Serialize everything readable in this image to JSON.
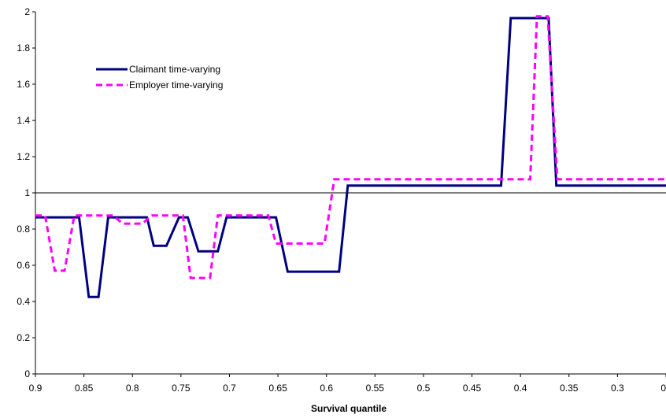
{
  "chart_data": {
    "type": "line",
    "title": "",
    "xlabel": "Survival quantile",
    "ylabel": "",
    "xlim": [
      0.9,
      0.25
    ],
    "ylim": [
      0,
      2
    ],
    "x_ticks": [
      "0.9",
      "0.85",
      "0.8",
      "0.75",
      "0.7",
      "0.65",
      "0.6",
      "0.55",
      "0.5",
      "0.45",
      "0.4",
      "0.35",
      "0.3",
      "0"
    ],
    "y_ticks": [
      "0",
      "0.2",
      "0.4",
      "0.6",
      "0.8",
      "1",
      "1.2",
      "1.4",
      "1.6",
      "1.8",
      "2"
    ],
    "reference_line": 1,
    "grid": false,
    "legend_position": "upper-left",
    "series": [
      {
        "name": "Claimant time-varying",
        "color": "#000080",
        "style": "solid",
        "x": [
          0.9,
          0.855,
          0.845,
          0.835,
          0.825,
          0.785,
          0.778,
          0.765,
          0.752,
          0.743,
          0.732,
          0.712,
          0.703,
          0.692,
          0.66,
          0.652,
          0.64,
          0.587,
          0.578,
          0.42,
          0.41,
          0.371,
          0.363,
          0.25
        ],
        "values": [
          0.865,
          0.865,
          0.425,
          0.425,
          0.865,
          0.865,
          0.708,
          0.708,
          0.865,
          0.865,
          0.677,
          0.677,
          0.865,
          0.865,
          0.865,
          0.865,
          0.565,
          0.565,
          1.04,
          1.04,
          1.965,
          1.965,
          1.04,
          1.04
        ]
      },
      {
        "name": "Employer time-varying",
        "color": "#ff00ff",
        "style": "dashed",
        "x": [
          0.9,
          0.89,
          0.88,
          0.87,
          0.86,
          0.82,
          0.81,
          0.79,
          0.78,
          0.748,
          0.74,
          0.72,
          0.712,
          0.7,
          0.66,
          0.652,
          0.602,
          0.592,
          0.42,
          0.415,
          0.39,
          0.383,
          0.372,
          0.362,
          0.25
        ],
        "values": [
          0.875,
          0.875,
          0.57,
          0.57,
          0.875,
          0.875,
          0.83,
          0.83,
          0.875,
          0.875,
          0.53,
          0.53,
          0.875,
          0.875,
          0.875,
          0.72,
          0.72,
          1.075,
          1.075,
          1.075,
          1.075,
          1.975,
          1.975,
          1.075,
          1.075
        ]
      }
    ]
  }
}
